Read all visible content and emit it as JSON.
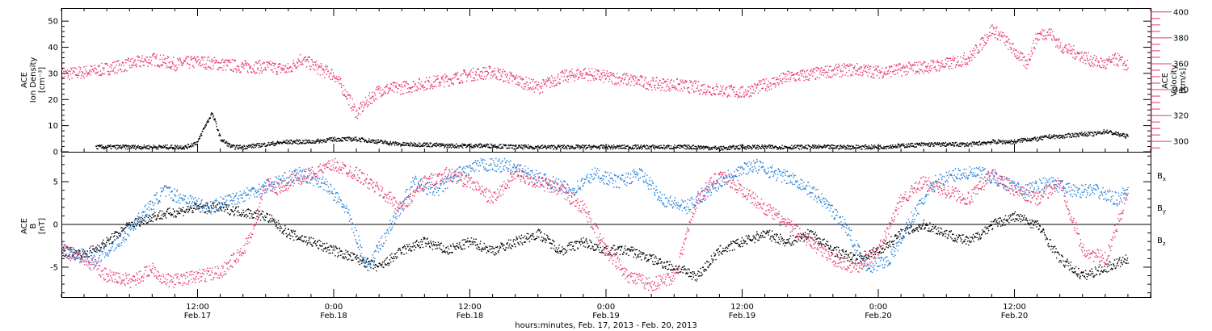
{
  "chart_data": [
    {
      "type": "scatter",
      "panel": "ion-density-velocity",
      "ylabel_lines": [
        "ACE",
        "Ion Density",
        "[cm⁻³]"
      ],
      "y2label_lines": [
        "ACE",
        "Velocity",
        "[km/s]"
      ],
      "ylim": [
        0,
        55
      ],
      "y_ticks": [
        "0",
        "10",
        "20",
        "30",
        "40",
        "50"
      ],
      "y2lim": [
        292,
        403
      ],
      "y2_ticks": [
        "300",
        "320",
        "340",
        "360",
        "380",
        "400"
      ],
      "series": [
        {
          "axis": "left",
          "color": "#000000",
          "x": [
            3,
            6,
            8,
            9,
            10,
            11,
            12,
            12.5,
            13,
            13.2,
            13.5,
            14,
            15,
            16,
            18,
            20,
            22,
            24,
            26,
            28,
            30,
            32,
            34,
            36,
            38,
            40,
            42,
            44,
            46,
            48,
            50,
            52,
            54,
            56,
            58,
            60,
            62,
            64,
            66,
            68,
            70,
            72,
            74,
            76,
            78,
            80,
            82,
            83,
            84,
            85,
            86,
            87,
            88,
            90,
            91,
            92,
            93,
            94
          ],
          "y": [
            2,
            2,
            2,
            2,
            2,
            2,
            4,
            9,
            13,
            15,
            12,
            5,
            2,
            2,
            3,
            4,
            4,
            5,
            5,
            4,
            3,
            3,
            2.5,
            2.5,
            2.5,
            2,
            2,
            2,
            2,
            2,
            2,
            2,
            2,
            2,
            1.5,
            2,
            2,
            2,
            2,
            2,
            2,
            2,
            2.5,
            3,
            3,
            3,
            4,
            4,
            4,
            5,
            5,
            6,
            6,
            7,
            7,
            8,
            7,
            6
          ]
        },
        {
          "axis": "right",
          "color": "#e8376b",
          "x": [
            0,
            3,
            6,
            8,
            9,
            10,
            12,
            14,
            16,
            18,
            20,
            21,
            22,
            23,
            24,
            25,
            26,
            27,
            28,
            30,
            32,
            34,
            36,
            38,
            40,
            42,
            44,
            46,
            48,
            50,
            52,
            54,
            56,
            58,
            60,
            62,
            64,
            66,
            68,
            70,
            72,
            74,
            76,
            78,
            80,
            81,
            82,
            83,
            84,
            85,
            86,
            87,
            88,
            89,
            90,
            91,
            92,
            93,
            94
          ],
          "y": [
            352,
            355,
            360,
            364,
            362,
            360,
            362,
            360,
            358,
            358,
            356,
            364,
            360,
            355,
            352,
            338,
            322,
            332,
            340,
            342,
            345,
            348,
            352,
            354,
            348,
            342,
            350,
            353,
            350,
            348,
            345,
            344,
            342,
            340,
            338,
            344,
            350,
            352,
            355,
            356,
            354,
            356,
            358,
            360,
            365,
            375,
            387,
            380,
            370,
            360,
            382,
            385,
            374,
            370,
            366,
            362,
            360,
            364,
            358
          ]
        }
      ]
    },
    {
      "type": "scatter",
      "panel": "magnetic-field",
      "ylabel_lines": [
        "ACE",
        "B",
        "[nT]"
      ],
      "ylim": [
        -8.5,
        8.5
      ],
      "y_ticks": [
        "-5",
        "0",
        "5"
      ],
      "legend": [
        "Bx",
        "By",
        "Bz"
      ],
      "series": [
        {
          "name": "Bx",
          "color": "#000000",
          "x": [
            0,
            2,
            4,
            6,
            8,
            10,
            12,
            14,
            16,
            18,
            20,
            22,
            24,
            26,
            28,
            30,
            32,
            34,
            36,
            38,
            40,
            42,
            44,
            46,
            48,
            50,
            52,
            54,
            56,
            58,
            60,
            62,
            64,
            66,
            68,
            70,
            72,
            74,
            76,
            78,
            80,
            82,
            84,
            86,
            88,
            90,
            92,
            94
          ],
          "y": [
            -3,
            -3.5,
            -2,
            0,
            1,
            1.5,
            2,
            2,
            1.5,
            1,
            -1,
            -2,
            -3,
            -4,
            -5,
            -3,
            -2,
            -3,
            -2,
            -3,
            -2,
            -1,
            -3,
            -2,
            -3,
            -3,
            -4,
            -5,
            -6,
            -3,
            -2,
            -1,
            -2,
            -1,
            -3,
            -4,
            -3,
            -1,
            0,
            -1,
            -2,
            0,
            1,
            0,
            -4,
            -6,
            -5,
            -4
          ]
        },
        {
          "name": "By",
          "color": "#1e7fd8",
          "x": [
            0,
            3,
            5,
            7,
            9,
            11,
            13,
            15,
            17,
            19,
            21,
            23,
            25,
            27,
            29,
            31,
            33,
            35,
            37,
            39,
            41,
            43,
            45,
            47,
            49,
            51,
            53,
            55,
            57,
            59,
            61,
            63,
            65,
            67,
            69,
            71,
            73,
            75,
            77,
            79,
            81,
            83,
            85,
            87,
            89,
            91,
            93,
            94
          ],
          "y": [
            -3,
            -4,
            -2,
            1,
            4,
            3,
            2,
            3,
            4,
            5,
            6,
            5,
            2,
            -5,
            0,
            5,
            4,
            6,
            7,
            7,
            6,
            5,
            4,
            6,
            5,
            6,
            3,
            2,
            4,
            6,
            7,
            6,
            5,
            3,
            0,
            -5,
            -4,
            1,
            5,
            6,
            6,
            5,
            4,
            5,
            4,
            4,
            3,
            4
          ]
        },
        {
          "name": "Bz",
          "color": "#e8376b",
          "x": [
            0,
            2,
            4,
            6,
            7,
            8,
            9,
            10,
            12,
            14,
            16,
            17,
            18,
            19,
            20,
            22,
            24,
            26,
            28,
            30,
            32,
            34,
            36,
            38,
            40,
            42,
            44,
            46,
            48,
            50,
            52,
            54,
            56,
            58,
            60,
            62,
            64,
            66,
            68,
            70,
            72,
            74,
            76,
            78,
            80,
            82,
            84,
            86,
            88,
            90,
            92,
            94
          ],
          "y": [
            -3,
            -4,
            -6,
            -6.5,
            -6,
            -5,
            -6.5,
            -6.5,
            -6,
            -5.5,
            -3,
            0,
            5,
            4,
            5,
            6,
            7,
            6,
            4,
            2,
            5,
            6,
            5,
            3,
            6,
            5,
            4,
            2,
            -3,
            -6,
            -7,
            -6,
            3,
            6,
            4,
            2,
            0,
            -2,
            -4,
            -5,
            -3,
            3,
            5,
            4,
            3,
            6,
            4,
            3,
            5,
            -3,
            -4,
            4
          ]
        }
      ]
    }
  ],
  "x_axis": {
    "range_hours": [
      0,
      96
    ],
    "tick_labels": [
      {
        "time": "12:00",
        "day": "Feb.17"
      },
      {
        "time": "0:00",
        "day": "Feb.18"
      },
      {
        "time": "12:00",
        "day": "Feb.18"
      },
      {
        "time": "0:00",
        "day": "Feb.19"
      },
      {
        "time": "12:00",
        "day": "Feb.19"
      },
      {
        "time": "0:00",
        "day": "Feb.20"
      },
      {
        "time": "12:00",
        "day": "Feb.20"
      }
    ],
    "title": "hours:minutes, Feb. 17, 2013 - Feb. 20, 2013"
  },
  "legend_labels": {
    "bx": {
      "main": "B",
      "sub": "x",
      "color": "#000000"
    },
    "by": {
      "main": "B",
      "sub": "y",
      "color": "#1e7fd8"
    },
    "bz": {
      "main": "B",
      "sub": "z",
      "color": "#e8376b"
    }
  }
}
